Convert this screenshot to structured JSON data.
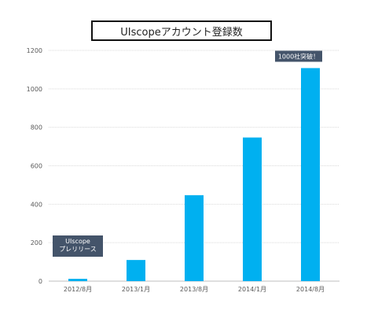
{
  "chart_data": {
    "type": "bar",
    "title": "UIscopeアカウント登録数",
    "xlabel": "",
    "ylabel": "",
    "categories": [
      "2012/8月",
      "2013/1月",
      "2013/8月",
      "2014/1月",
      "2014/8月"
    ],
    "values": [
      12,
      110,
      447,
      747,
      1108
    ],
    "ylim": [
      0,
      1200
    ],
    "yticks": [
      0,
      200,
      400,
      600,
      800,
      1000,
      1200
    ],
    "grid": true,
    "legend": "none",
    "annotations": [
      {
        "category": "2012/8月",
        "lines": [
          "UIscope",
          "プレリリース"
        ]
      },
      {
        "category": "2014/8月",
        "lines": [
          "1000社突破！"
        ]
      }
    ],
    "colors": {
      "bar": "#00b0f0",
      "grid": "#d9d9d9",
      "callout": "#44546a"
    }
  }
}
